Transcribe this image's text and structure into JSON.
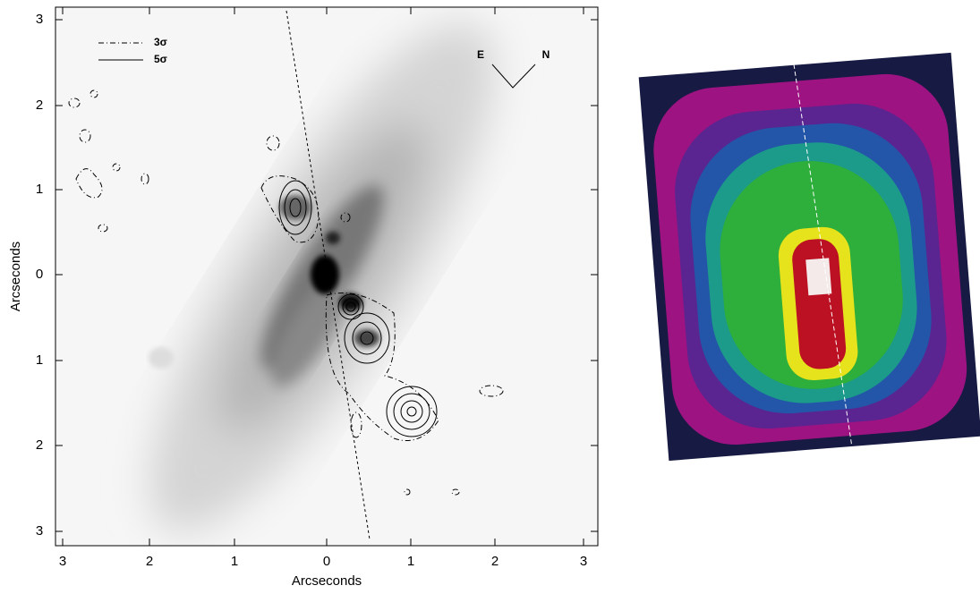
{
  "left_panel": {
    "x_label": "Arcseconds",
    "y_label": "Arcseconds",
    "x_tick_labels": [
      "3",
      "2",
      "1",
      "0",
      "1",
      "2",
      "3"
    ],
    "y_tick_labels": [
      "3",
      "2",
      "1",
      "0",
      "1",
      "2",
      "3"
    ],
    "legend": [
      {
        "label": "3σ",
        "style": "dash-dot"
      },
      {
        "label": "5σ",
        "style": "solid"
      }
    ],
    "compass": {
      "east": "E",
      "north": "N"
    }
  }
}
